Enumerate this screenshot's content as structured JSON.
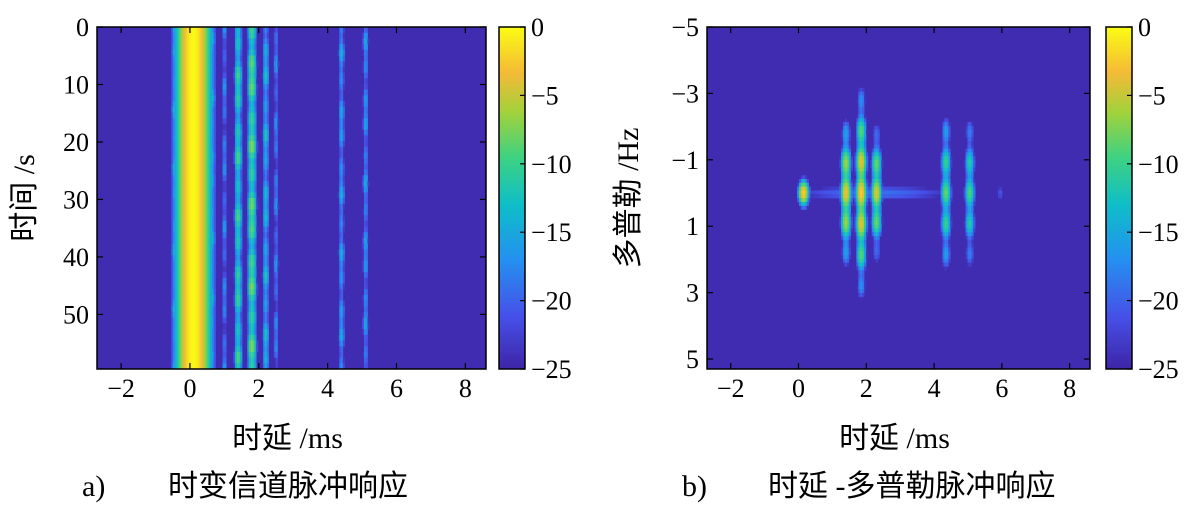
{
  "chart_data": [
    {
      "type": "heatmap",
      "panel_label": "a)",
      "caption": "时变信道脉冲响应",
      "xlabel": "时延 /ms",
      "ylabel": "时间 /s",
      "xlim": [
        -2.7,
        8.6
      ],
      "ylim": [
        0,
        59.5
      ],
      "y_inverted": true,
      "x_ticks": [
        -2,
        0,
        2,
        4,
        6,
        8
      ],
      "x_tick_labels": [
        "−2",
        "0",
        "2",
        "4",
        "6",
        "8"
      ],
      "y_ticks": [
        0,
        10,
        20,
        30,
        40,
        50
      ],
      "y_tick_labels": [
        "0",
        "10",
        "20",
        "30",
        "40",
        "50"
      ],
      "colorbar": {
        "min": -25,
        "max": 0,
        "ticks": [
          0,
          -5,
          -10,
          -15,
          -20,
          -25
        ],
        "tick_labels": [
          "0",
          "−5",
          "−10",
          "−15",
          "−20",
          "−25"
        ]
      },
      "background_level": -24.5,
      "paths": [
        {
          "delay": 0.1,
          "width": 0.28,
          "level": 0
        },
        {
          "delay": -0.45,
          "width": 0.06,
          "level": -17
        },
        {
          "delay": 0.65,
          "width": 0.06,
          "level": -17
        },
        {
          "delay": 1.0,
          "width": 0.05,
          "level": -19
        },
        {
          "delay": 1.4,
          "width": 0.07,
          "level": -12
        },
        {
          "delay": 1.8,
          "width": 0.08,
          "level": -10
        },
        {
          "delay": 2.2,
          "width": 0.06,
          "level": -15
        },
        {
          "delay": 2.5,
          "width": 0.05,
          "level": -19
        },
        {
          "delay": 4.4,
          "width": 0.06,
          "level": -17
        },
        {
          "delay": 5.1,
          "width": 0.06,
          "level": -18
        }
      ]
    },
    {
      "type": "heatmap",
      "panel_label": "b)",
      "caption": "时延 -多普勒脉冲响应",
      "xlabel": "时延 /ms",
      "ylabel": "多普勒 /Hz",
      "xlim": [
        -2.7,
        8.6
      ],
      "ylim": [
        -5,
        5.3
      ],
      "y_inverted": true,
      "x_ticks": [
        -2,
        0,
        2,
        4,
        6,
        8
      ],
      "x_tick_labels": [
        "−2",
        "0",
        "2",
        "4",
        "6",
        "8"
      ],
      "y_ticks": [
        -5,
        -3,
        -1,
        1,
        3,
        5
      ],
      "y_tick_labels": [
        "−5",
        "−3",
        "−1",
        "1",
        "3",
        "5"
      ],
      "colorbar": {
        "min": -25,
        "max": 0,
        "ticks": [
          0,
          -5,
          -10,
          -15,
          -20,
          -25
        ],
        "tick_labels": [
          "0",
          "−5",
          "−10",
          "−15",
          "−20",
          "−25"
        ]
      },
      "background_level": -24.5,
      "doppler_center": 0,
      "paths": [
        {
          "delay": 0.15,
          "peak": -2,
          "doppler_spread": 0.5
        },
        {
          "delay": 1.4,
          "peak": -3,
          "doppler_spread": 2.0
        },
        {
          "delay": 1.85,
          "peak": -2,
          "doppler_spread": 2.8
        },
        {
          "delay": 2.3,
          "peak": -4,
          "doppler_spread": 1.8
        },
        {
          "delay": 4.35,
          "peak": -8,
          "doppler_spread": 2.6
        },
        {
          "delay": 5.05,
          "peak": -9,
          "doppler_spread": 2.4
        },
        {
          "delay": 5.95,
          "peak": -21,
          "doppler_spread": 0.5
        }
      ]
    }
  ]
}
